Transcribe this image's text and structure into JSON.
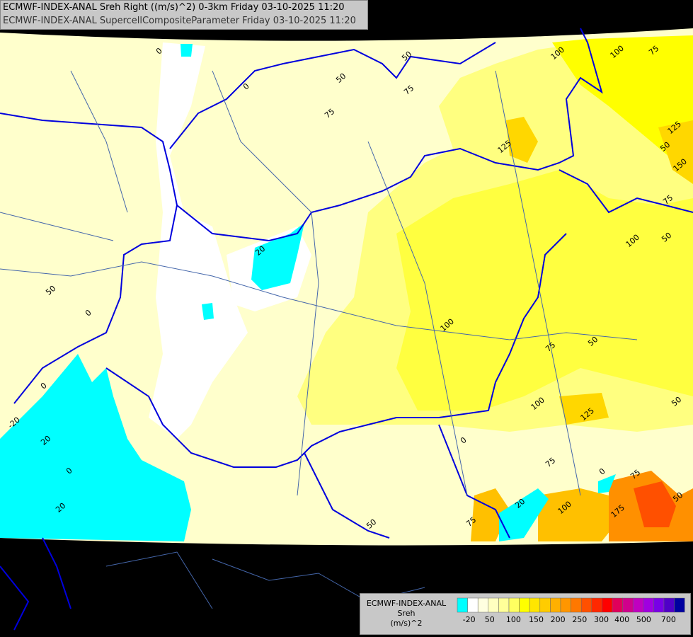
{
  "header": {
    "line1": "ECMWF-INDEX-ANAL Sreh Right ((m/s)^2) 0-3km Friday 03-10-2025 11:20",
    "line2": "ECMWF-INDEX-ANAL SupercellCompositeParameter Friday 03-10-2025 11:20"
  },
  "legend": {
    "title": [
      "ECMWF-INDEX-ANAL",
      "Sreh",
      "(m/s)^2"
    ],
    "colors": [
      "#00ffff",
      "#ffffff",
      "#ffffe0",
      "#ffffc0",
      "#ffff99",
      "#ffff60",
      "#ffff00",
      "#ffe600",
      "#ffcc00",
      "#ffb000",
      "#ff9600",
      "#ff7800",
      "#ff5000",
      "#ff2800",
      "#ff0000",
      "#e0005a",
      "#d0008c",
      "#c000c0",
      "#a000e0",
      "#7800e6",
      "#5000c8",
      "#0000a0"
    ],
    "labels": [
      "-20",
      "50",
      "100",
      "150",
      "200",
      "250",
      "300",
      "400",
      "500",
      "700"
    ]
  },
  "contour_labels": [
    "0",
    "0",
    "50",
    "75",
    "50",
    "75",
    "100",
    "100",
    "75",
    "125",
    "125",
    "150",
    "75",
    "50",
    "100",
    "20",
    "50",
    "0",
    "100",
    "75",
    "50",
    "0",
    "-20",
    "20",
    "0",
    "20",
    "125",
    "100",
    "50",
    "0",
    "75",
    "75",
    "0",
    "20",
    "100",
    "175",
    "50",
    "75",
    "50",
    "50"
  ]
}
